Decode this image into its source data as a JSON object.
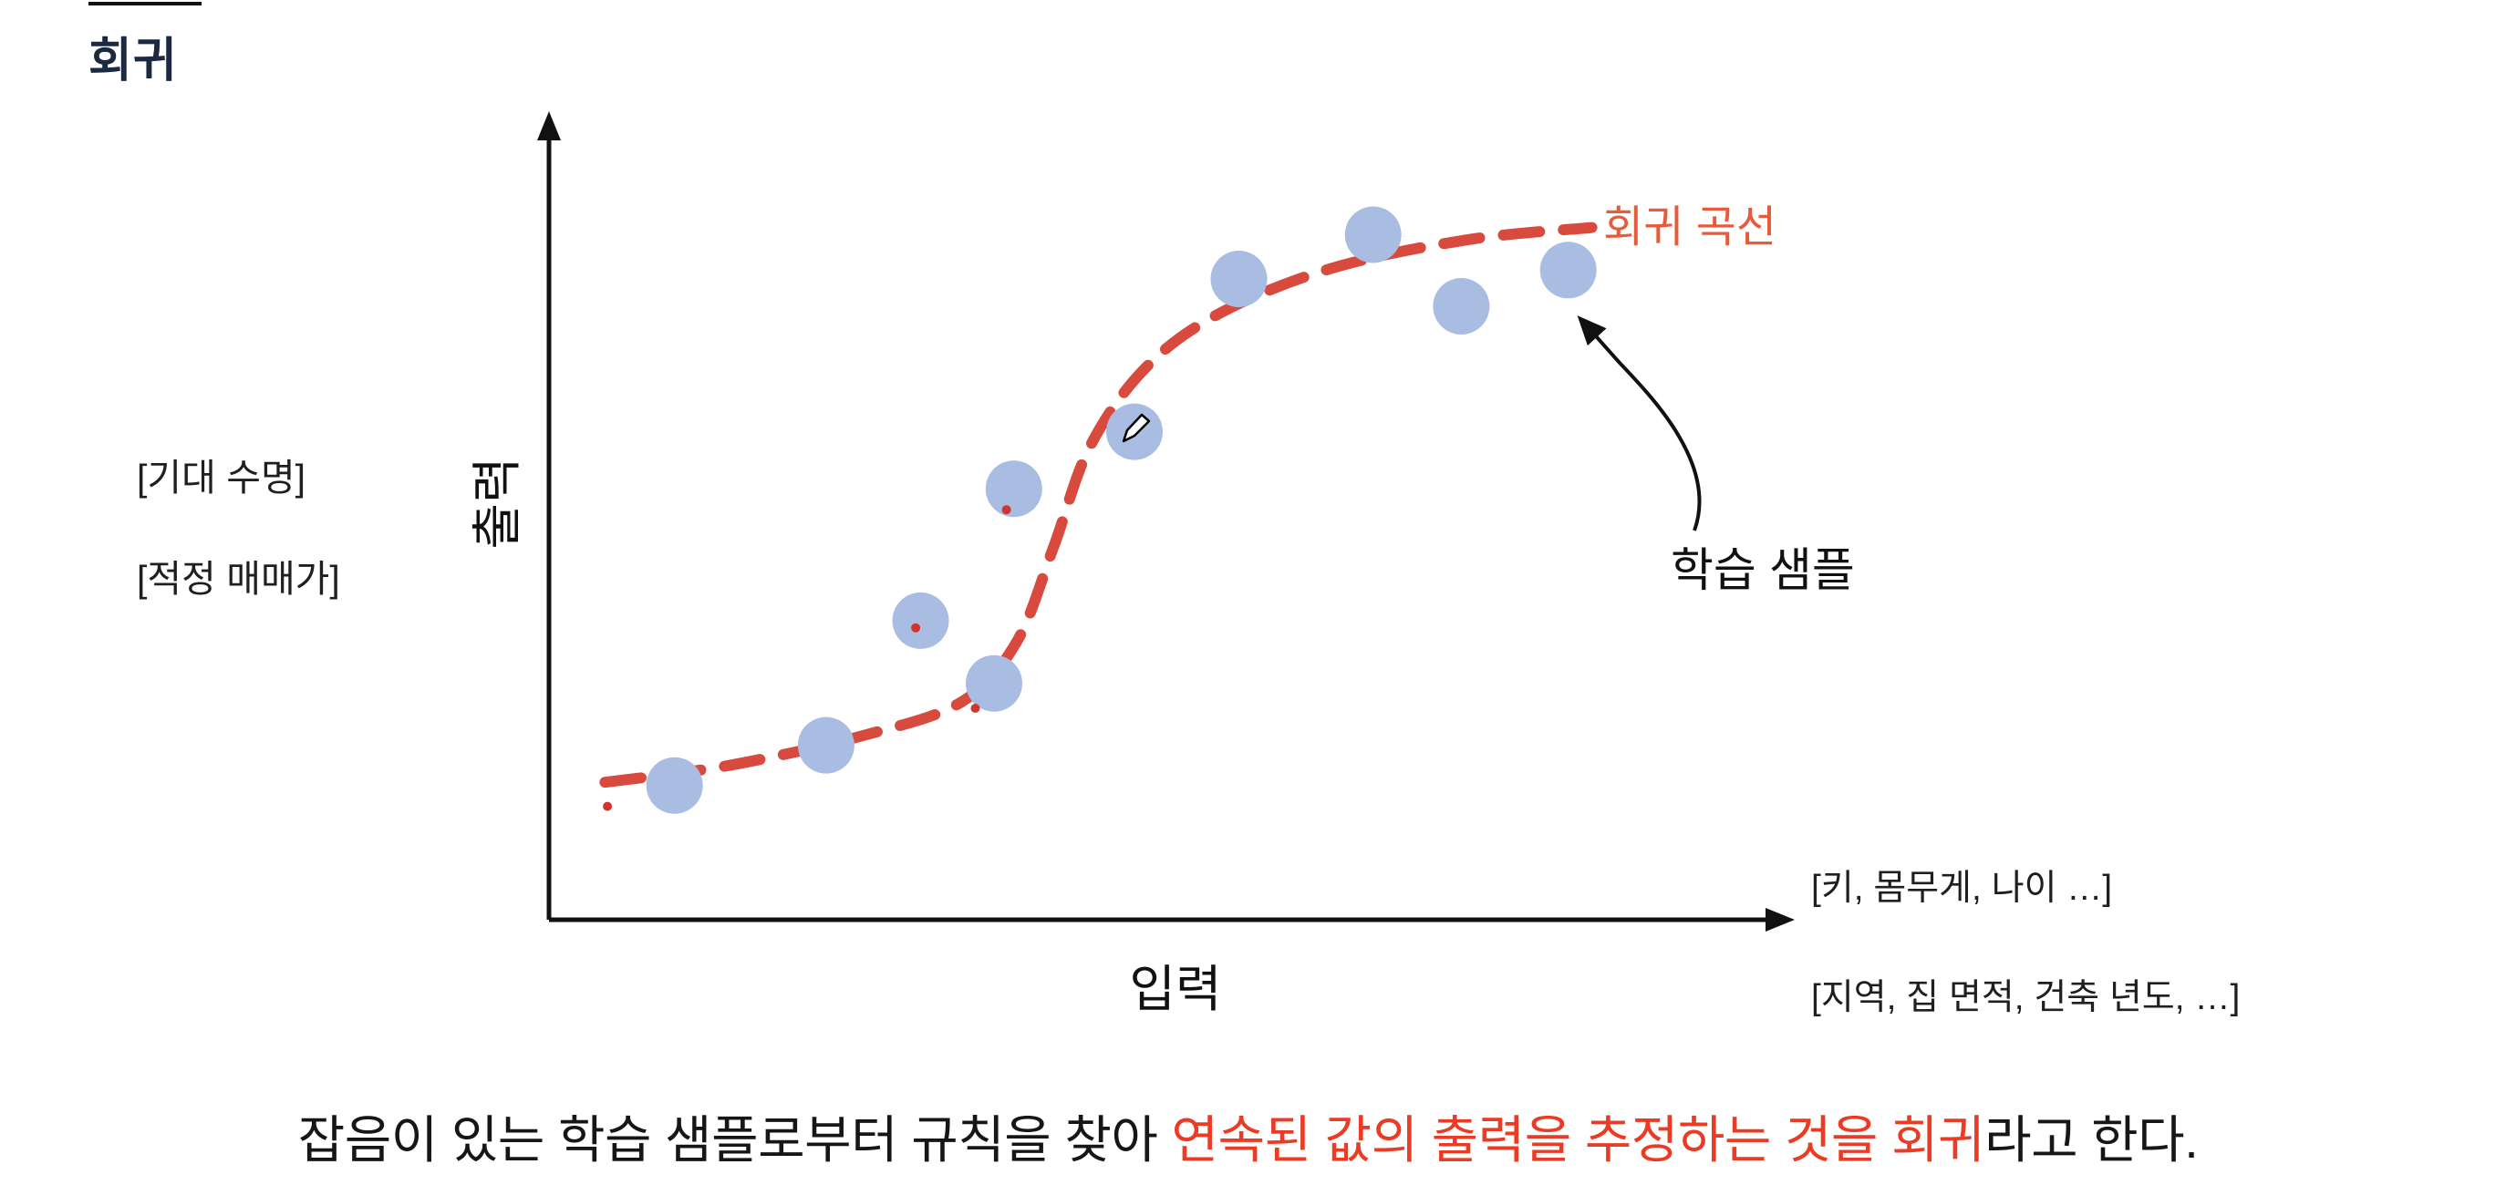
{
  "slide": {
    "title": "회귀",
    "y_axis_label": "출력",
    "x_axis_label": "입력",
    "left_examples": [
      "[기대 수명]",
      "[적정 매매가]"
    ],
    "x_examples": [
      "[키, 몸무게, 나이 …]",
      "[지역, 집 면적, 건축 년도, …]"
    ],
    "curve_label": "회귀 곡선",
    "sample_label": "학습 샘플",
    "caption": {
      "part1": "잡음이 있는 학습 샘플로부터 규칙을 찾아 ",
      "part2": "연속된 값의 출력을 추정하는 것을 회귀",
      "part3": "라고 한다."
    },
    "colors": {
      "title": "#1c2942",
      "axis": "#111111",
      "curve_red": "#d94a3e",
      "curve_label_red": "#e85a3c",
      "caption_red": "#ea3b25",
      "point_blue": "#a9bce1",
      "noise_red": "#d0342c"
    }
  },
  "chart_data": {
    "type": "scatter",
    "title": "",
    "xlabel": "입력",
    "ylabel": "출력",
    "axes_numeric": false,
    "x_axis_examples": [
      "[키, 몸무게, 나이 …]",
      "[지역, 집 면적, 건축 년도, …]"
    ],
    "y_axis_examples": [
      "[기대 수명]",
      "[적정 매매가]"
    ],
    "legend": {
      "curve": "회귀 곡선",
      "points": "학습 샘플"
    },
    "points_norm": [
      [
        0.101,
        0.167
      ],
      [
        0.223,
        0.217
      ],
      [
        0.299,
        0.372
      ],
      [
        0.358,
        0.294
      ],
      [
        0.374,
        0.536
      ],
      [
        0.471,
        0.607
      ],
      [
        0.555,
        0.797
      ],
      [
        0.663,
        0.852
      ],
      [
        0.734,
        0.763
      ],
      [
        0.82,
        0.808
      ]
    ],
    "noise_marks_norm": [
      [
        0.047,
        0.141
      ],
      [
        0.295,
        0.363
      ],
      [
        0.343,
        0.263
      ],
      [
        0.368,
        0.51
      ]
    ],
    "regression_curve_norm": [
      [
        0.045,
        0.171
      ],
      [
        0.145,
        0.192
      ],
      [
        0.255,
        0.23
      ],
      [
        0.332,
        0.271
      ],
      [
        0.376,
        0.345
      ],
      [
        0.406,
        0.464
      ],
      [
        0.435,
        0.588
      ],
      [
        0.479,
        0.685
      ],
      [
        0.538,
        0.753
      ],
      [
        0.629,
        0.81
      ],
      [
        0.74,
        0.846
      ],
      [
        0.839,
        0.861
      ]
    ]
  }
}
